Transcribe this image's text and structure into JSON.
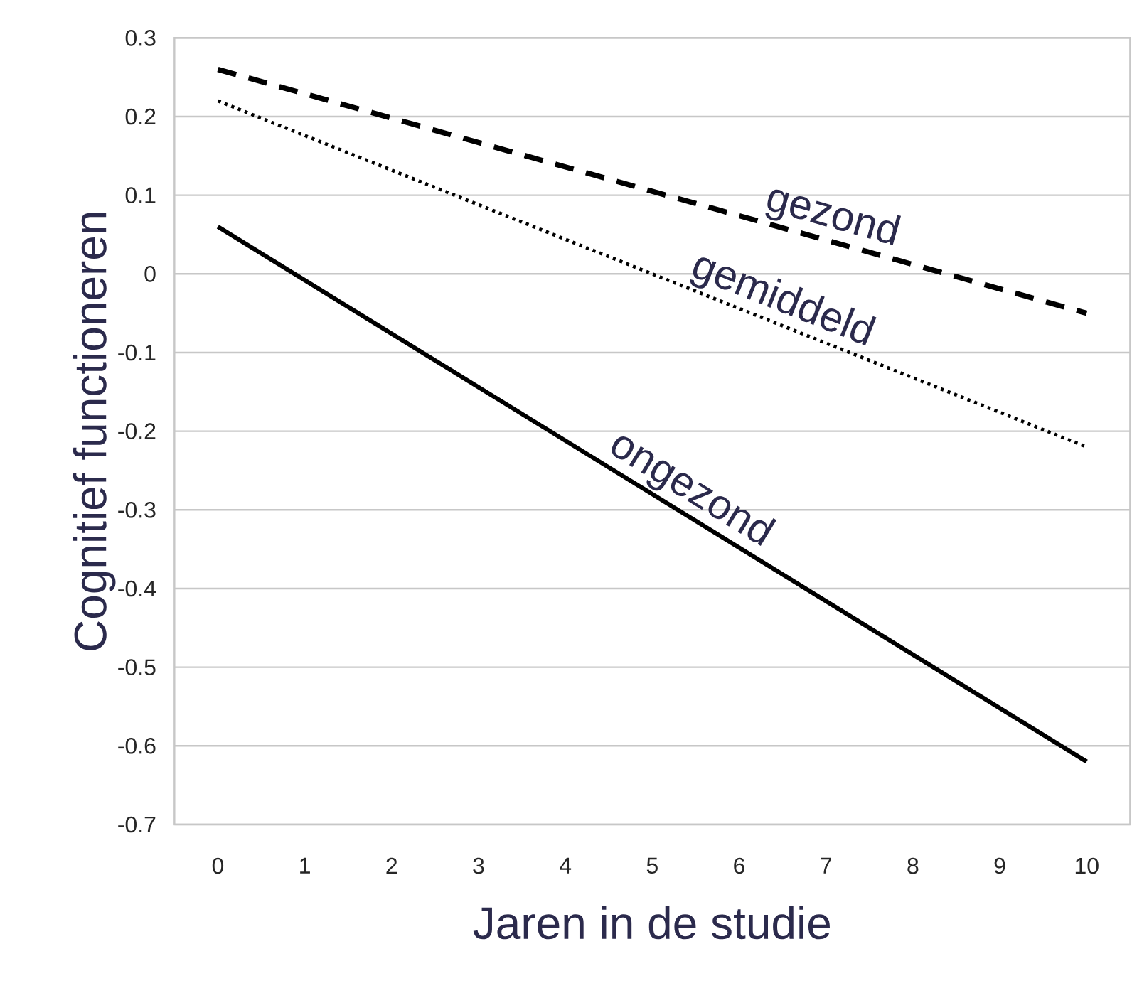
{
  "chart_data": {
    "type": "line",
    "xlabel": "Jaren in de studie",
    "ylabel": "Cognitief functioneren",
    "x": [
      0,
      10
    ],
    "series": [
      {
        "name": "gezond",
        "color": "#000000",
        "line_style": "dashed",
        "values": [
          0.26,
          -0.05
        ]
      },
      {
        "name": "gemiddeld",
        "color": "#000000",
        "line_style": "dotted",
        "values": [
          0.22,
          -0.22
        ]
      },
      {
        "name": "ongezond",
        "color": "#000000",
        "line_style": "solid",
        "values": [
          0.06,
          -0.62
        ]
      }
    ],
    "xlim": [
      -0.5,
      10.5
    ],
    "ylim": [
      -0.7,
      0.3
    ],
    "xticks": [
      0,
      1,
      2,
      3,
      4,
      5,
      6,
      7,
      8,
      9,
      10
    ],
    "yticks": [
      -0.7,
      -0.6,
      -0.5,
      -0.4,
      -0.3,
      -0.2,
      -0.1,
      0,
      0.1,
      0.2,
      0.3
    ],
    "grid": "y"
  }
}
